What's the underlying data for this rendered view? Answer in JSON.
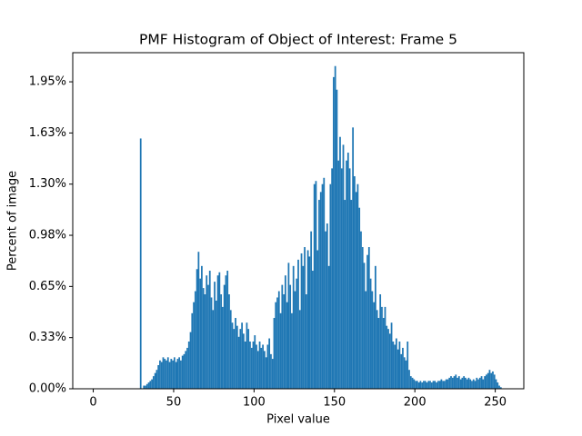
{
  "chart_data": {
    "type": "histogram",
    "title": "PMF Histogram of Object of Interest: Frame 5",
    "xlabel": "Pixel value",
    "ylabel": "Percent of image",
    "color": "#1f77b4",
    "xlim": [
      -12.75,
      267.75
    ],
    "xticks": [
      0,
      50,
      100,
      150,
      200,
      250
    ],
    "ylim": [
      0,
      2.135
    ],
    "yticks": [
      {
        "value": 0,
        "label": "0.00%"
      },
      {
        "value": 0.325,
        "label": "0.33%"
      },
      {
        "value": 0.65,
        "label": "0.65%"
      },
      {
        "value": 0.975,
        "label": "0.98%"
      },
      {
        "value": 1.3,
        "label": "1.30%"
      },
      {
        "value": 1.625,
        "label": "1.63%"
      },
      {
        "value": 1.95,
        "label": "1.95%"
      }
    ],
    "bins": [
      0,
      1,
      2,
      3,
      4,
      5,
      6,
      7,
      8,
      9,
      10,
      11,
      12,
      13,
      14,
      15,
      16,
      17,
      18,
      19,
      20,
      21,
      22,
      23,
      24,
      25,
      26,
      27,
      28,
      29,
      30,
      31,
      32,
      33,
      34,
      35,
      36,
      37,
      38,
      39,
      40,
      41,
      42,
      43,
      44,
      45,
      46,
      47,
      48,
      49,
      50,
      51,
      52,
      53,
      54,
      55,
      56,
      57,
      58,
      59,
      60,
      61,
      62,
      63,
      64,
      65,
      66,
      67,
      68,
      69,
      70,
      71,
      72,
      73,
      74,
      75,
      76,
      77,
      78,
      79,
      80,
      81,
      82,
      83,
      84,
      85,
      86,
      87,
      88,
      89,
      90,
      91,
      92,
      93,
      94,
      95,
      96,
      97,
      98,
      99,
      100,
      101,
      102,
      103,
      104,
      105,
      106,
      107,
      108,
      109,
      110,
      111,
      112,
      113,
      114,
      115,
      116,
      117,
      118,
      119,
      120,
      121,
      122,
      123,
      124,
      125,
      126,
      127,
      128,
      129,
      130,
      131,
      132,
      133,
      134,
      135,
      136,
      137,
      138,
      139,
      140,
      141,
      142,
      143,
      144,
      145,
      146,
      147,
      148,
      149,
      150,
      151,
      152,
      153,
      154,
      155,
      156,
      157,
      158,
      159,
      160,
      161,
      162,
      163,
      164,
      165,
      166,
      167,
      168,
      169,
      170,
      171,
      172,
      173,
      174,
      175,
      176,
      177,
      178,
      179,
      180,
      181,
      182,
      183,
      184,
      185,
      186,
      187,
      188,
      189,
      190,
      191,
      192,
      193,
      194,
      195,
      196,
      197,
      198,
      199,
      200,
      201,
      202,
      203,
      204,
      205,
      206,
      207,
      208,
      209,
      210,
      211,
      212,
      213,
      214,
      215,
      216,
      217,
      218,
      219,
      220,
      221,
      222,
      223,
      224,
      225,
      226,
      227,
      228,
      229,
      230,
      231,
      232,
      233,
      234,
      235,
      236,
      237,
      238,
      239,
      240,
      241,
      242,
      243,
      244,
      245,
      246,
      247,
      248,
      249,
      250,
      251,
      252,
      253,
      254,
      255,
      256
    ],
    "values": [
      0,
      0,
      0,
      0,
      0,
      0,
      0,
      0,
      0,
      0,
      0,
      0,
      0,
      0,
      0,
      0,
      0,
      0,
      0,
      0,
      0,
      0,
      0,
      0,
      0,
      0,
      0,
      0,
      0,
      1.59,
      0,
      0.02,
      0.02,
      0.03,
      0.04,
      0.05,
      0.06,
      0.08,
      0.1,
      0.12,
      0.15,
      0.18,
      0.17,
      0.2,
      0.19,
      0.18,
      0.2,
      0.17,
      0.19,
      0.18,
      0.2,
      0.17,
      0.19,
      0.2,
      0.18,
      0.21,
      0.22,
      0.24,
      0.26,
      0.3,
      0.36,
      0.48,
      0.55,
      0.62,
      0.76,
      0.87,
      0.7,
      0.78,
      0.64,
      0.6,
      0.72,
      0.66,
      0.75,
      0.58,
      0.5,
      0.68,
      0.56,
      0.72,
      0.74,
      0.6,
      0.52,
      0.66,
      0.72,
      0.75,
      0.6,
      0.5,
      0.42,
      0.38,
      0.45,
      0.4,
      0.33,
      0.38,
      0.42,
      0.35,
      0.3,
      0.42,
      0.38,
      0.3,
      0.26,
      0.3,
      0.34,
      0.28,
      0.24,
      0.3,
      0.26,
      0.28,
      0.24,
      0.2,
      0.28,
      0.32,
      0.22,
      0.19,
      0.45,
      0.55,
      0.58,
      0.62,
      0.48,
      0.66,
      0.6,
      0.72,
      0.55,
      0.8,
      0.66,
      0.48,
      0.78,
      0.62,
      0.7,
      0.82,
      0.5,
      0.86,
      0.78,
      0.9,
      0.6,
      0.88,
      0.84,
      1.0,
      0.75,
      1.3,
      1.32,
      0.88,
      1.2,
      1.25,
      1.3,
      1.34,
      1.0,
      1.05,
      0.78,
      1.3,
      1.4,
      1.98,
      2.05,
      1.9,
      1.45,
      1.6,
      1.4,
      1.55,
      1.2,
      1.45,
      1.5,
      1.4,
      1.2,
      1.66,
      1.35,
      1.25,
      1.3,
      1.15,
      1.0,
      0.9,
      0.8,
      0.62,
      0.85,
      0.9,
      0.7,
      0.62,
      0.55,
      0.78,
      0.5,
      0.45,
      0.6,
      0.52,
      0.45,
      0.52,
      0.4,
      0.38,
      0.35,
      0.42,
      0.3,
      0.28,
      0.32,
      0.25,
      0.3,
      0.22,
      0.26,
      0.2,
      0.18,
      0.3,
      0.12,
      0.08,
      0.07,
      0.06,
      0.05,
      0.05,
      0.04,
      0.05,
      0.04,
      0.05,
      0.05,
      0.04,
      0.05,
      0.05,
      0.04,
      0.05,
      0.05,
      0.04,
      0.05,
      0.05,
      0.06,
      0.05,
      0.05,
      0.06,
      0.06,
      0.07,
      0.08,
      0.07,
      0.08,
      0.09,
      0.07,
      0.08,
      0.06,
      0.07,
      0.08,
      0.07,
      0.06,
      0.07,
      0.06,
      0.05,
      0.06,
      0.05,
      0.07,
      0.06,
      0.07,
      0.08,
      0.06,
      0.08,
      0.09,
      0.1,
      0.12,
      0.1,
      0.11,
      0.09,
      0.06,
      0.04,
      0.02,
      0.01,
      0,
      0
    ]
  }
}
